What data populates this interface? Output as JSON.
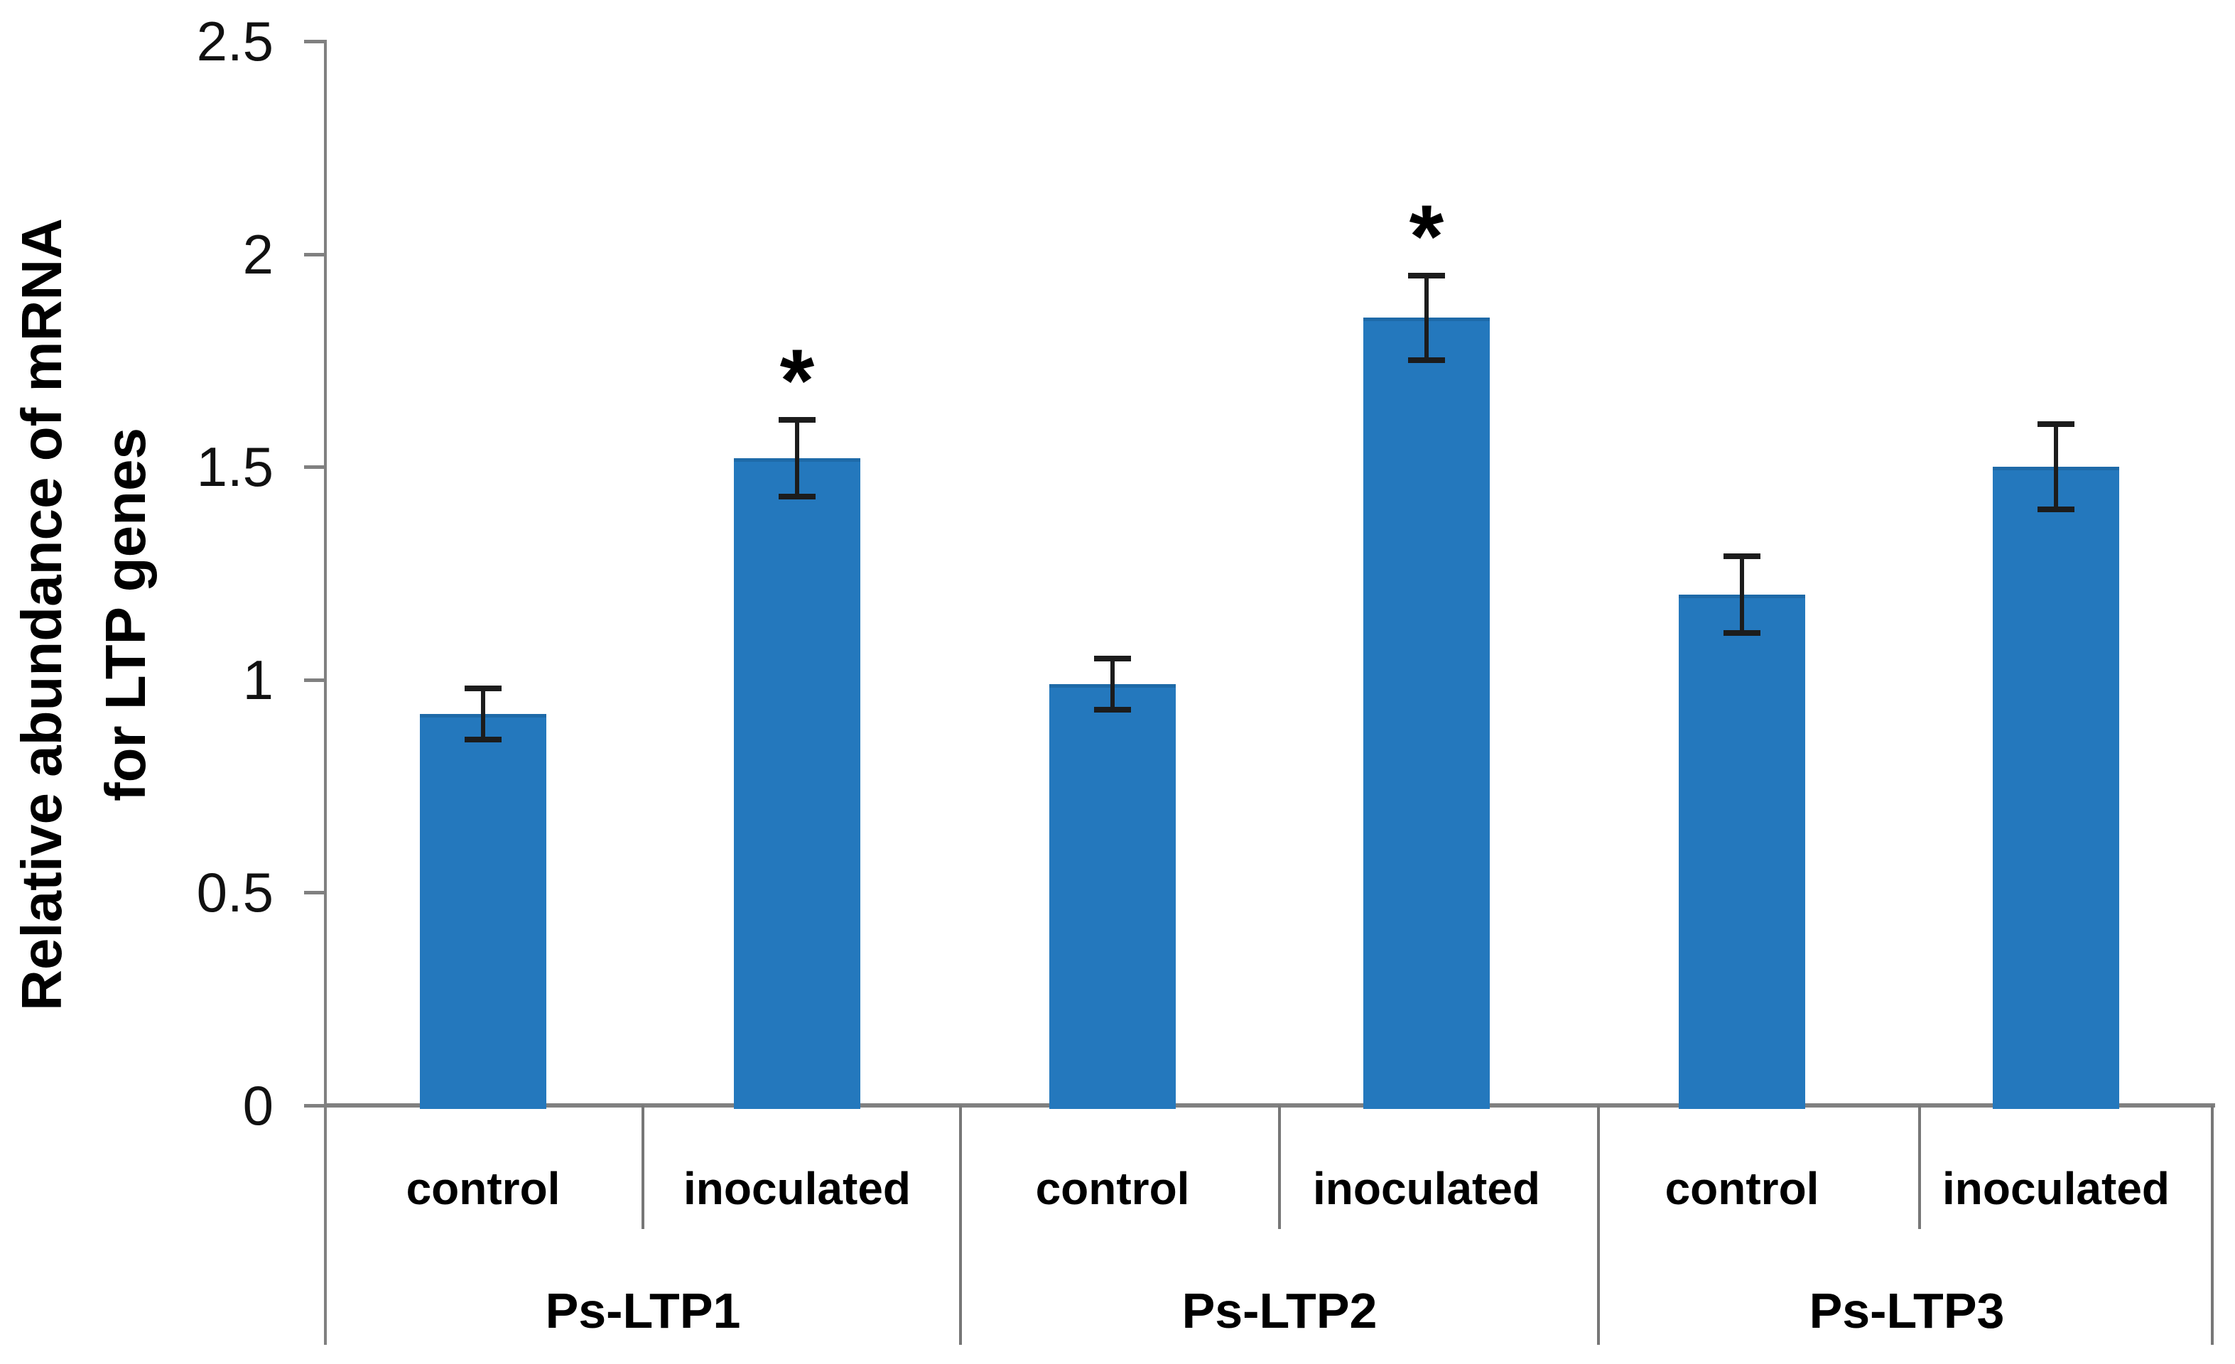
{
  "figure": {
    "background": "#ffffff",
    "significance_marker": "*"
  },
  "chart_data": {
    "type": "bar",
    "title": "",
    "ylabel_lines": [
      "Relative abundance  of  mRNA",
      "for LTP genes"
    ],
    "xlabel": "",
    "ylim": [
      0,
      2.5
    ],
    "yticks": [
      0,
      0.5,
      1,
      1.5,
      2,
      2.5
    ],
    "ytick_labels": [
      "0",
      "0.5",
      "1",
      "1.5",
      "2",
      "2.5"
    ],
    "groups": [
      "Ps-LTP1",
      "Ps-LTP2",
      "Ps-LTP3"
    ],
    "conditions": [
      "control",
      "inoculated"
    ],
    "grid": false,
    "legend": "none",
    "bar_color": "#2478BD",
    "axis_color": "#808080",
    "error_bar_color": "#1c1c1c",
    "series": [
      {
        "group": "Ps-LTP1",
        "condition": "control",
        "value": 0.92,
        "error": 0.06,
        "significant": false
      },
      {
        "group": "Ps-LTP1",
        "condition": "inoculated",
        "value": 1.52,
        "error": 0.09,
        "significant": true
      },
      {
        "group": "Ps-LTP2",
        "condition": "control",
        "value": 0.99,
        "error": 0.06,
        "significant": false
      },
      {
        "group": "Ps-LTP2",
        "condition": "inoculated",
        "value": 1.85,
        "error": 0.1,
        "significant": true
      },
      {
        "group": "Ps-LTP3",
        "condition": "control",
        "value": 1.2,
        "error": 0.09,
        "significant": false
      },
      {
        "group": "Ps-LTP3",
        "condition": "inoculated",
        "value": 1.5,
        "error": 0.1,
        "significant": false
      }
    ]
  }
}
